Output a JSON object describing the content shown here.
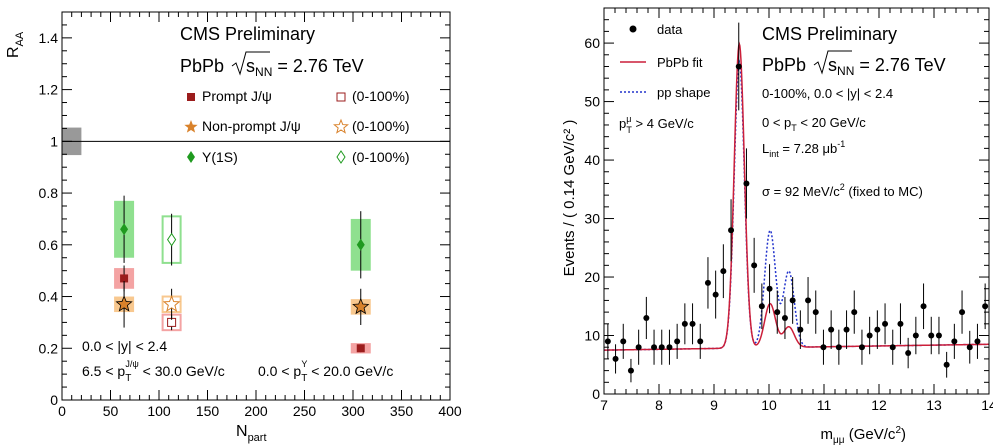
{
  "chart_data": [
    {
      "type": "scatter",
      "xlabel_main": "N",
      "xlabel_sub": "part",
      "ylabel_main": "R",
      "ylabel_sub": "AA",
      "xlim": [
        0,
        400
      ],
      "ylim": [
        0,
        1.5
      ],
      "xticks": [
        "0",
        "50",
        "100",
        "150",
        "200",
        "250",
        "300",
        "350",
        "400"
      ],
      "yticks": [
        "0.2",
        "0.4",
        "0.6",
        "0.8",
        "1",
        "1.2",
        "1.4"
      ],
      "title_lines": {
        "l1": "CMS Preliminary",
        "l2_pre": "PbPb ",
        "l2_sqrt": "s",
        "l2_sub": "NN",
        "l2_post": " = 2.76 TeV"
      },
      "legend": {
        "prompt": "Prompt J/ψ",
        "nonprompt": "Non-prompt J/ψ",
        "upsilon": "Υ(1S)",
        "minbias": "(0-100%)"
      },
      "annotations": {
        "rap": "0.0 < |y| < 2.4",
        "jpsi_pt_pre": "6.5 < p",
        "jpsi_pt_sub": "T",
        "jpsi_pt_sup": "J/ψ",
        "jpsi_pt_post": " < 30.0 GeV/c",
        "ups_pt_pre": "0.0 < p",
        "ups_pt_sub": "T",
        "ups_pt_sup": "Υ",
        "ups_pt_post": " < 20.0 GeV/c"
      },
      "reference_line": 1.0,
      "colors": {
        "prompt": "#9b1c1c",
        "prompt_box": "#f4a3a3",
        "nonprompt": "#d9822b",
        "nonprompt_box": "#f8c88f",
        "upsilon": "#1f9a1f",
        "upsilon_box": "#8fe08f",
        "global": "#999999"
      },
      "series": [
        {
          "name": "Prompt J/ψ",
          "marker": "square",
          "points": [
            {
              "x": 64,
              "y": 0.47,
              "err": 0.05,
              "sys": 0.04
            },
            {
              "x": 308,
              "y": 0.2,
              "err": 0.015,
              "sys": 0.02
            }
          ]
        },
        {
          "name": "Non-prompt J/ψ",
          "marker": "star",
          "points": [
            {
              "x": 64,
              "y": 0.37,
              "err": 0.09,
              "sys": 0.03
            },
            {
              "x": 308,
              "y": 0.36,
              "err": 0.07,
              "sys": 0.03
            }
          ]
        },
        {
          "name": "Υ(1S)",
          "marker": "diamond",
          "points": [
            {
              "x": 64,
              "y": 0.66,
              "err": 0.13,
              "sys": 0.11
            },
            {
              "x": 308,
              "y": 0.6,
              "err": 0.13,
              "sys": 0.1
            }
          ]
        },
        {
          "name": "Prompt J/ψ (0-100%)",
          "marker": "open-square",
          "points": [
            {
              "x": 113,
              "y": 0.3,
              "err": 0.03,
              "sys": 0.03
            }
          ]
        },
        {
          "name": "Non-prompt J/ψ (0-100%)",
          "marker": "open-star",
          "points": [
            {
              "x": 113,
              "y": 0.37,
              "err": 0.06,
              "sys": 0.03
            }
          ]
        },
        {
          "name": "Υ(1S) (0-100%)",
          "marker": "open-diamond",
          "points": [
            {
              "x": 113,
              "y": 0.62,
              "err": 0.1,
              "sys": 0.09
            }
          ]
        }
      ],
      "global_uncertainty": {
        "x_center": 10,
        "low": 0.97,
        "high": 1.03
      }
    },
    {
      "type": "line",
      "xlabel_main": "m",
      "xlabel_sub": "μμ",
      "xlabel_post": " (GeV/c",
      "xlabel_sup": "2",
      "xlabel_end": ")",
      "ylabel": "Events / ( 0.14 GeV/c² )",
      "xlim": [
        7,
        14
      ],
      "ylim": [
        0,
        66
      ],
      "xticks": [
        "7",
        "8",
        "9",
        "10",
        "11",
        "12",
        "13",
        "14"
      ],
      "yticks": [
        "0",
        "10",
        "20",
        "30",
        "40",
        "50",
        "60"
      ],
      "title_lines": {
        "l1": "CMS Preliminary",
        "l2_pre": "PbPb ",
        "l2_sqrt": "s",
        "l2_sub": "NN",
        "l2_post": " = 2.76 TeV"
      },
      "legend": {
        "data": "data",
        "fit": "PbPb fit",
        "pp": "pp shape"
      },
      "annotations": {
        "centrality": "0-100%, 0.0 < |y| < 2.4",
        "pt_pre": "0 < p",
        "pt_sub": "T",
        "pt_post": " < 20 GeV/c",
        "lumi_pre": "L",
        "lumi_sub": "int",
        "lumi_post": " = 7.28 μb",
        "lumi_sup": "-1",
        "sigma_pre": "σ = 92 MeV/c",
        "sigma_sup": "2",
        "sigma_post": " (fixed to MC)",
        "mupt_pre": "p",
        "mupt_sup": "μ",
        "mupt_sub": "T",
        "mupt_post": " > 4 GeV/c"
      },
      "colors": {
        "data": "#000000",
        "fit": "#cc1f3a",
        "pp": "#2233cc"
      },
      "data_points": [
        {
          "x": 7.07,
          "y": 9,
          "err": 3
        },
        {
          "x": 7.21,
          "y": 6,
          "err": 2.5
        },
        {
          "x": 7.35,
          "y": 9,
          "err": 3
        },
        {
          "x": 7.49,
          "y": 4,
          "err": 2
        },
        {
          "x": 7.63,
          "y": 8,
          "err": 3
        },
        {
          "x": 7.77,
          "y": 13,
          "err": 3.6
        },
        {
          "x": 7.91,
          "y": 8,
          "err": 3
        },
        {
          "x": 8.05,
          "y": 8,
          "err": 3
        },
        {
          "x": 8.19,
          "y": 8,
          "err": 3
        },
        {
          "x": 8.33,
          "y": 9,
          "err": 3
        },
        {
          "x": 8.47,
          "y": 12,
          "err": 3.5
        },
        {
          "x": 8.61,
          "y": 12,
          "err": 3.5
        },
        {
          "x": 8.75,
          "y": 9,
          "err": 3
        },
        {
          "x": 8.89,
          "y": 19,
          "err": 4.4
        },
        {
          "x": 9.03,
          "y": 17,
          "err": 4.1
        },
        {
          "x": 9.17,
          "y": 21,
          "err": 4.6
        },
        {
          "x": 9.31,
          "y": 28,
          "err": 5.3
        },
        {
          "x": 9.45,
          "y": 56,
          "err": 7.5
        },
        {
          "x": 9.59,
          "y": 36,
          "err": 6
        },
        {
          "x": 9.73,
          "y": 22,
          "err": 4.7
        },
        {
          "x": 9.87,
          "y": 15,
          "err": 3.9
        },
        {
          "x": 10.01,
          "y": 18,
          "err": 4.2
        },
        {
          "x": 10.15,
          "y": 14,
          "err": 3.7
        },
        {
          "x": 10.29,
          "y": 13,
          "err": 3.6
        },
        {
          "x": 10.43,
          "y": 16,
          "err": 4
        },
        {
          "x": 10.57,
          "y": 11,
          "err": 3.3
        },
        {
          "x": 10.71,
          "y": 16,
          "err": 4
        },
        {
          "x": 10.85,
          "y": 14,
          "err": 3.7
        },
        {
          "x": 10.99,
          "y": 8,
          "err": 3
        },
        {
          "x": 11.13,
          "y": 11,
          "err": 3.3
        },
        {
          "x": 11.27,
          "y": 8,
          "err": 3
        },
        {
          "x": 11.41,
          "y": 11,
          "err": 3.3
        },
        {
          "x": 11.55,
          "y": 14,
          "err": 3.7
        },
        {
          "x": 11.69,
          "y": 8,
          "err": 3
        },
        {
          "x": 11.83,
          "y": 10,
          "err": 3.2
        },
        {
          "x": 11.97,
          "y": 11,
          "err": 3.3
        },
        {
          "x": 12.11,
          "y": 12,
          "err": 3.5
        },
        {
          "x": 12.25,
          "y": 8,
          "err": 3
        },
        {
          "x": 12.39,
          "y": 12,
          "err": 3.5
        },
        {
          "x": 12.53,
          "y": 7,
          "err": 2.6
        },
        {
          "x": 12.67,
          "y": 10,
          "err": 3.2
        },
        {
          "x": 12.81,
          "y": 15,
          "err": 3.9
        },
        {
          "x": 12.95,
          "y": 10,
          "err": 3.2
        },
        {
          "x": 13.09,
          "y": 10,
          "err": 3.2
        },
        {
          "x": 13.23,
          "y": 5,
          "err": 2.2
        },
        {
          "x": 13.37,
          "y": 9,
          "err": 3
        },
        {
          "x": 13.51,
          "y": 14,
          "err": 3.7
        },
        {
          "x": 13.65,
          "y": 8,
          "err": 2.8
        },
        {
          "x": 13.79,
          "y": 9,
          "err": 3
        },
        {
          "x": 13.93,
          "y": 15,
          "err": 3.9
        }
      ],
      "fit_model": {
        "background": {
          "at7": 7.5,
          "at14": 8.5
        },
        "peaks": [
          {
            "mass": 9.46,
            "sigma": 0.092,
            "height": 52,
            "pp_height": 49
          },
          {
            "mass": 10.02,
            "sigma": 0.1,
            "height": 7.5,
            "pp_height": 20
          },
          {
            "mass": 10.36,
            "sigma": 0.1,
            "height": 3.5,
            "pp_height": 13
          }
        ],
        "pp_background": {
          "at7": 7.5,
          "at14": 8.5
        }
      }
    }
  ]
}
